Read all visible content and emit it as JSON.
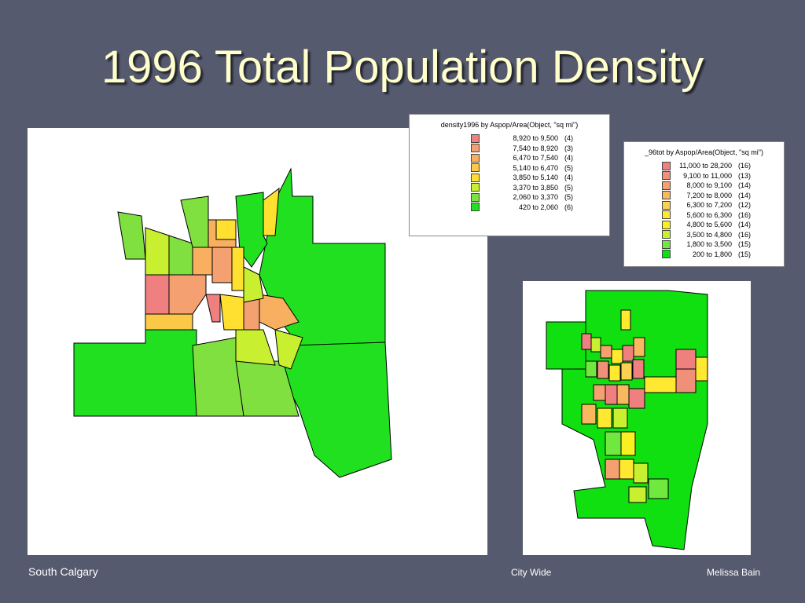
{
  "title": "1996 Total Population Density",
  "legends": [
    {
      "title": "density1996 by Aspop/Area(Object, \"sq mi\")",
      "entries": [
        {
          "range": "8,920 to 9,500",
          "count": "(4)",
          "color": "#f08080"
        },
        {
          "range": "7,540 to 8,920",
          "count": "(3)",
          "color": "#f4a070"
        },
        {
          "range": "6,470 to 7,540",
          "count": "(4)",
          "color": "#f8b060"
        },
        {
          "range": "5,140 to 6,470",
          "count": "(5)",
          "color": "#fcc848"
        },
        {
          "range": "3,850 to 5,140",
          "count": "(4)",
          "color": "#ffe030"
        },
        {
          "range": "3,370 to 3,850",
          "count": "(5)",
          "color": "#c8f030"
        },
        {
          "range": "2,060 to 3,370",
          "count": "(5)",
          "color": "#80e040"
        },
        {
          "range": "420 to 2,060",
          "count": "(6)",
          "color": "#20e020"
        }
      ]
    },
    {
      "title": "_96tot by Aspop/Area(Object, \"sq mi\")",
      "entries": [
        {
          "range": "11,000 to 28,200",
          "count": "(16)",
          "color": "#f08080"
        },
        {
          "range": "9,100 to 11,000",
          "count": "(13)",
          "color": "#f09078"
        },
        {
          "range": "8,000 to 9,100",
          "count": "(14)",
          "color": "#f4a070"
        },
        {
          "range": "7,200 to 8,000",
          "count": "(14)",
          "color": "#f8b860"
        },
        {
          "range": "6,300 to 7,200",
          "count": "(12)",
          "color": "#fcd050"
        },
        {
          "range": "5,600 to 6,300",
          "count": "(16)",
          "color": "#ffe830"
        },
        {
          "range": "4,800 to 5,600",
          "count": "(14)",
          "color": "#f8f020"
        },
        {
          "range": "3,500 to 4,800",
          "count": "(16)",
          "color": "#c8f030"
        },
        {
          "range": "1,800 to 3,500",
          "count": "(15)",
          "color": "#70e840"
        },
        {
          "range": "200 to 1,800",
          "count": "(15)",
          "color": "#10e010"
        }
      ]
    }
  ],
  "captions": {
    "left": "South Calgary",
    "center": "City Wide",
    "right": "Melissa Bain"
  }
}
